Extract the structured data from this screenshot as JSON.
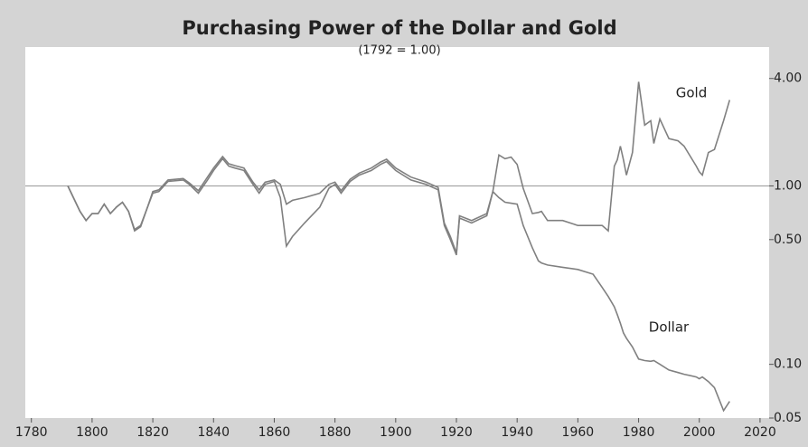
{
  "chart_data": {
    "type": "line",
    "title": "Purchasing Power of the Dollar and Gold",
    "subtitle": "(1792 = 1.00)",
    "x": [
      1792,
      1796,
      1798,
      1800,
      1802,
      1804,
      1806,
      1808,
      1810,
      1812,
      1814,
      1816,
      1818,
      1820,
      1822,
      1825,
      1830,
      1832,
      1835,
      1838,
      1840,
      1843,
      1845,
      1847,
      1850,
      1853,
      1855,
      1857,
      1860,
      1862,
      1864,
      1866,
      1870,
      1875,
      1878,
      1880,
      1882,
      1885,
      1888,
      1892,
      1895,
      1897,
      1900,
      1905,
      1910,
      1914,
      1916,
      1918,
      1920,
      1921,
      1925,
      1930,
      1932,
      1934,
      1936,
      1938,
      1940,
      1942,
      1945,
      1947,
      1948,
      1950,
      1955,
      1960,
      1965,
      1968,
      1970,
      1972,
      1973,
      1974,
      1975,
      1976,
      1978,
      1980,
      1982,
      1984,
      1985,
      1987,
      1990,
      1993,
      1995,
      1999,
      2000,
      2001,
      2003,
      2005,
      2008,
      2010
    ],
    "series": [
      {
        "name": "Gold",
        "color": "#808080",
        "values": [
          1.0,
          0.72,
          0.64,
          0.7,
          0.7,
          0.79,
          0.7,
          0.76,
          0.81,
          0.72,
          0.57,
          0.6,
          0.74,
          0.93,
          0.95,
          1.08,
          1.1,
          1.04,
          0.94,
          1.12,
          1.26,
          1.46,
          1.33,
          1.3,
          1.26,
          1.05,
          0.95,
          1.05,
          1.08,
          1.02,
          0.79,
          0.83,
          0.86,
          0.91,
          1.02,
          1.05,
          0.94,
          1.09,
          1.18,
          1.26,
          1.36,
          1.41,
          1.26,
          1.12,
          1.05,
          0.98,
          0.62,
          0.52,
          0.42,
          0.68,
          0.64,
          0.7,
          0.93,
          1.49,
          1.42,
          1.45,
          1.32,
          0.97,
          0.7,
          0.71,
          0.72,
          0.64,
          0.64,
          0.6,
          0.6,
          0.6,
          0.56,
          1.29,
          1.4,
          1.67,
          1.4,
          1.15,
          1.54,
          3.83,
          2.19,
          2.32,
          1.73,
          2.37,
          1.84,
          1.79,
          1.67,
          1.29,
          1.2,
          1.15,
          1.54,
          1.6,
          2.32,
          3.03
        ]
      },
      {
        "name": "Dollar",
        "color": "#808080",
        "values": [
          1.0,
          0.72,
          0.64,
          0.7,
          0.7,
          0.79,
          0.7,
          0.76,
          0.81,
          0.72,
          0.56,
          0.59,
          0.74,
          0.91,
          0.93,
          1.06,
          1.08,
          1.02,
          0.91,
          1.08,
          1.22,
          1.42,
          1.29,
          1.26,
          1.22,
          1.02,
          0.91,
          1.02,
          1.06,
          0.86,
          0.46,
          0.52,
          0.62,
          0.76,
          0.97,
          1.02,
          0.91,
          1.06,
          1.15,
          1.22,
          1.32,
          1.37,
          1.22,
          1.08,
          1.02,
          0.95,
          0.6,
          0.5,
          0.41,
          0.66,
          0.62,
          0.68,
          0.93,
          0.86,
          0.81,
          0.8,
          0.79,
          0.6,
          0.45,
          0.38,
          0.37,
          0.36,
          0.35,
          0.34,
          0.32,
          0.27,
          0.24,
          0.21,
          0.19,
          0.17,
          0.15,
          0.14,
          0.125,
          0.107,
          0.105,
          0.104,
          0.105,
          0.1,
          0.093,
          0.09,
          0.088,
          0.085,
          0.083,
          0.085,
          0.08,
          0.074,
          0.055,
          0.062
        ]
      }
    ],
    "xlim": [
      1778,
      2023
    ],
    "xticks": [
      1780,
      1800,
      1820,
      1840,
      1860,
      1880,
      1900,
      1920,
      1940,
      1960,
      1980,
      2000,
      2020
    ],
    "ylim": [
      0.05,
      6
    ],
    "yticks": [
      {
        "value": 4,
        "label": "4.00"
      },
      {
        "value": 1,
        "label": "1.00"
      },
      {
        "value": 0.5,
        "label": "0.50"
      },
      {
        "value": 0.1,
        "label": "0.10"
      },
      {
        "value": 0.05,
        "label": "0.05"
      }
    ],
    "log_y": true,
    "reference_line": 1
  }
}
